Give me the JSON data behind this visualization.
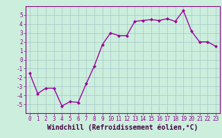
{
  "xlabel": "Windchill (Refroidissement éolien,°C)",
  "x": [
    0,
    1,
    2,
    3,
    4,
    5,
    6,
    7,
    8,
    9,
    10,
    11,
    12,
    13,
    14,
    15,
    16,
    17,
    18,
    19,
    20,
    21,
    22,
    23
  ],
  "y": [
    -1.5,
    -3.8,
    -3.2,
    -3.2,
    -5.2,
    -4.7,
    -4.8,
    -2.7,
    -0.7,
    1.7,
    3.0,
    2.7,
    2.7,
    4.3,
    4.4,
    4.5,
    4.4,
    4.6,
    4.3,
    5.5,
    3.2,
    2.0,
    2.0,
    1.5
  ],
  "line_color": "#990099",
  "marker": "D",
  "marker_size": 2.0,
  "background_color": "#cceedd",
  "grid_color": "#aacccc",
  "ylim": [
    -6,
    6
  ],
  "yticks": [
    -5,
    -4,
    -3,
    -2,
    -1,
    0,
    1,
    2,
    3,
    4,
    5
  ],
  "xticks": [
    0,
    1,
    2,
    3,
    4,
    5,
    6,
    7,
    8,
    9,
    10,
    11,
    12,
    13,
    14,
    15,
    16,
    17,
    18,
    19,
    20,
    21,
    22,
    23
  ],
  "tick_label_fontsize": 5.5,
  "xlabel_fontsize": 7.0,
  "line_width": 1.0
}
